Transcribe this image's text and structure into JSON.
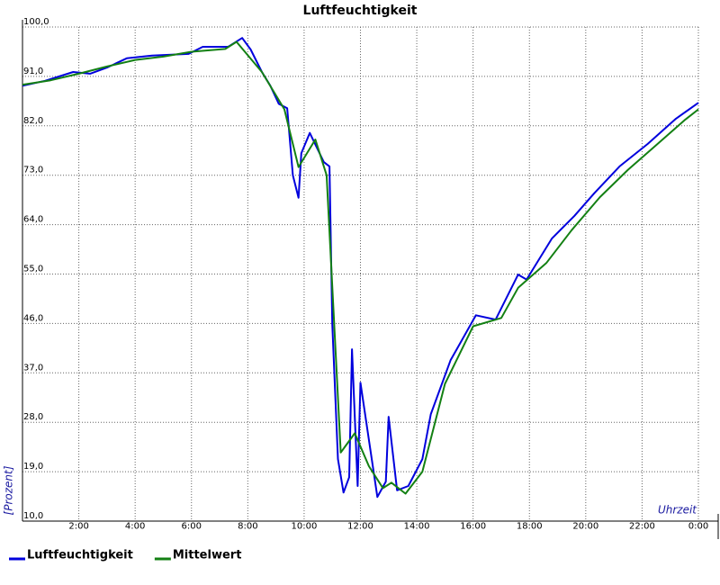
{
  "chart_data": {
    "type": "line",
    "title": "Luftfeuchtigkeit",
    "y_label": "[Prozent]",
    "x_label": "Uhrzeit",
    "xlim": [
      0,
      24
    ],
    "ylim": [
      10,
      100
    ],
    "grid": true,
    "xticks": [
      {
        "value": 2,
        "label": "2:00"
      },
      {
        "value": 4,
        "label": "4:00"
      },
      {
        "value": 6,
        "label": "6:00"
      },
      {
        "value": 8,
        "label": "8:00"
      },
      {
        "value": 10,
        "label": "10:00"
      },
      {
        "value": 12,
        "label": "12:00"
      },
      {
        "value": 14,
        "label": "14:00"
      },
      {
        "value": 16,
        "label": "16:00"
      },
      {
        "value": 18,
        "label": "18:00"
      },
      {
        "value": 20,
        "label": "20:00"
      },
      {
        "value": 22,
        "label": "22:00"
      },
      {
        "value": 24,
        "label": "0:00"
      }
    ],
    "yticks": [
      {
        "value": 10,
        "label": "10,0"
      },
      {
        "value": 19,
        "label": "19,0"
      },
      {
        "value": 28,
        "label": "28,0"
      },
      {
        "value": 37,
        "label": "37,0"
      },
      {
        "value": 46,
        "label": "46,0"
      },
      {
        "value": 55,
        "label": "55,0"
      },
      {
        "value": 64,
        "label": "64,0"
      },
      {
        "value": 73,
        "label": "73,0"
      },
      {
        "value": 82,
        "label": "82,0"
      },
      {
        "value": 91,
        "label": "91,0"
      },
      {
        "value": 100,
        "label": "100,0"
      }
    ],
    "series": [
      {
        "name": "Luftfeuchtigkeit",
        "color": "#0000dd",
        "x": [
          0,
          0.8,
          1.8,
          2.4,
          3.0,
          3.7,
          4.6,
          5.9,
          6.4,
          7.3,
          7.8,
          8.1,
          8.5,
          8.8,
          9.1,
          9.4,
          9.6,
          9.8,
          9.9,
          10.2,
          10.7,
          10.9,
          11.0,
          11.2,
          11.4,
          11.6,
          11.7,
          11.9,
          12.0,
          12.6,
          12.9,
          13.0,
          13.3,
          13.7,
          14.2,
          14.5,
          15.2,
          16.1,
          16.8,
          17.6,
          17.9,
          18.8,
          19.6,
          20.3,
          21.2,
          22.2,
          23.2,
          24
        ],
        "values": [
          89.3,
          90.2,
          91.8,
          91.5,
          92.6,
          94.3,
          94.8,
          95.1,
          96.4,
          96.4,
          98,
          95.9,
          91.8,
          89.3,
          86,
          85.2,
          73,
          68.9,
          77,
          80.7,
          75.4,
          74.6,
          45.9,
          21.3,
          15.2,
          18,
          41.3,
          16.4,
          35.2,
          14.4,
          17.2,
          29,
          15.6,
          16.4,
          21.3,
          29.5,
          39.3,
          47.5,
          46.7,
          54.9,
          54,
          61.5,
          65.6,
          69.7,
          74.6,
          78.7,
          83.3,
          86.2
        ]
      },
      {
        "name": "Mittelwert",
        "color": "#138013",
        "x": [
          0,
          1,
          2,
          3,
          4,
          5,
          6,
          7.2,
          7.6,
          8.5,
          9.3,
          9.8,
          10.4,
          10.8,
          11.3,
          11.8,
          12.3,
          12.8,
          13.1,
          13.6,
          14.2,
          15.0,
          16.0,
          17.0,
          17.6,
          18.6,
          19.5,
          20.5,
          21.5,
          22.5,
          23.5,
          24
        ],
        "values": [
          89.5,
          90.3,
          91.5,
          92.8,
          94,
          94.6,
          95.5,
          96,
          97.3,
          91.8,
          85,
          74.5,
          79.5,
          73,
          22.5,
          26,
          20,
          16,
          17,
          15,
          19,
          35,
          45.5,
          47,
          52.5,
          57,
          63,
          69,
          74,
          78.5,
          83,
          85
        ]
      }
    ]
  }
}
